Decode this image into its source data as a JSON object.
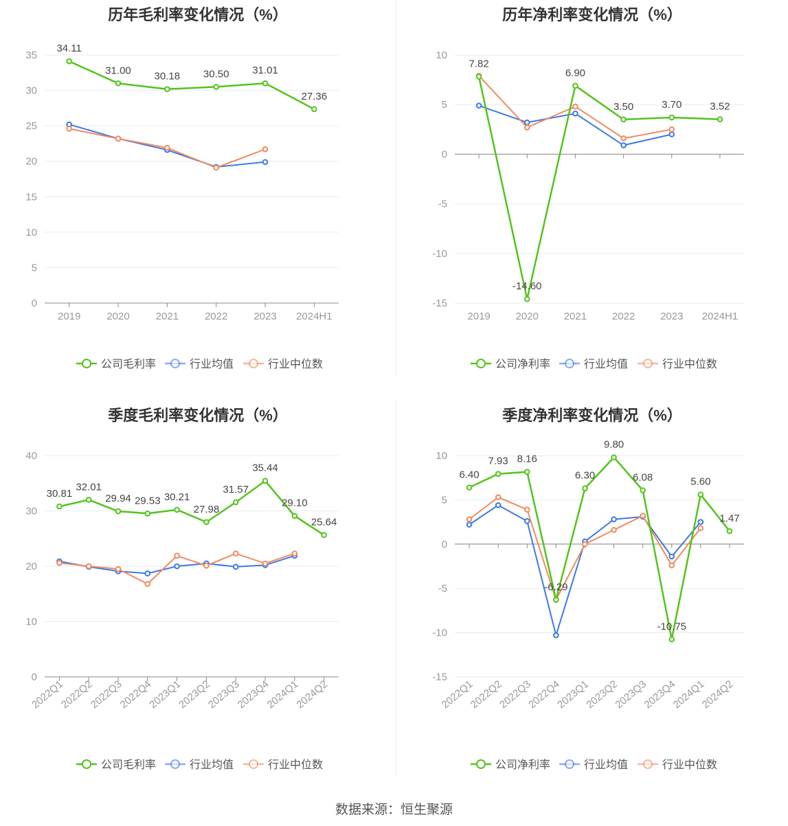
{
  "footer": "数据来源：恒生聚源",
  "colors": {
    "company": "#52c41a",
    "avg": "#3b78e7",
    "median": "#f08a5d",
    "grid": "#e8ebf3",
    "axis": "#999999",
    "label": "#444444"
  },
  "legend_labels": {
    "avg": "行业均值",
    "median": "行业中位数"
  },
  "chart_data": [
    {
      "type": "line",
      "title": "历年毛利率变化情况（%）",
      "x": [
        "2019",
        "2020",
        "2021",
        "2022",
        "2023",
        "2024H1"
      ],
      "ylim": [
        0,
        35
      ],
      "yticks": [
        0,
        5,
        10,
        15,
        20,
        25,
        30,
        35
      ],
      "series": [
        {
          "name": "公司毛利率",
          "key": "company",
          "values": [
            34.11,
            31.0,
            30.18,
            30.5,
            31.01,
            27.36
          ],
          "labels": [
            "34.11",
            "31.00",
            "30.18",
            "30.50",
            "31.01",
            "27.36"
          ]
        },
        {
          "name": "行业均值",
          "key": "avg",
          "values": [
            25.2,
            23.2,
            21.6,
            19.2,
            19.9,
            null
          ]
        },
        {
          "name": "行业中位数",
          "key": "median",
          "values": [
            24.6,
            23.2,
            21.9,
            19.1,
            21.7,
            null
          ]
        }
      ],
      "legend": "bottom",
      "grid": true
    },
    {
      "type": "line",
      "title": "历年净利率变化情况（%）",
      "x": [
        "2019",
        "2020",
        "2021",
        "2022",
        "2023",
        "2024H1"
      ],
      "ylim": [
        -15,
        10
      ],
      "yticks": [
        -15,
        -10,
        -5,
        0,
        5,
        10
      ],
      "series": [
        {
          "name": "公司净利率",
          "key": "company",
          "values": [
            7.82,
            -14.6,
            6.9,
            3.5,
            3.7,
            3.52
          ],
          "labels": [
            "7.82",
            "-14.60",
            "6.90",
            "3.50",
            "3.70",
            "3.52"
          ]
        },
        {
          "name": "行业均值",
          "key": "avg",
          "values": [
            4.9,
            3.2,
            4.1,
            0.9,
            2.0,
            null
          ]
        },
        {
          "name": "行业中位数",
          "key": "median",
          "values": [
            7.9,
            2.7,
            4.8,
            1.6,
            2.5,
            null
          ]
        }
      ],
      "legend": "bottom",
      "grid": true
    },
    {
      "type": "line",
      "title": "季度毛利率变化情况（%）",
      "x": [
        "2022Q1",
        "2022Q2",
        "2022Q3",
        "2022Q4",
        "2023Q1",
        "2023Q2",
        "2023Q3",
        "2023Q4",
        "2024Q1",
        "2024Q2"
      ],
      "ylim": [
        0,
        40
      ],
      "yticks": [
        0,
        10,
        20,
        30,
        40
      ],
      "series": [
        {
          "name": "公司毛利率",
          "key": "company",
          "values": [
            30.81,
            32.01,
            29.94,
            29.53,
            30.21,
            27.98,
            31.57,
            35.44,
            29.1,
            25.64
          ],
          "labels": [
            "30.81",
            "32.01",
            "29.94",
            "29.53",
            "30.21",
            "27.98",
            "31.57",
            "35.44",
            "29.10",
            "25.64"
          ]
        },
        {
          "name": "行业均值",
          "key": "avg",
          "values": [
            20.9,
            19.9,
            19.1,
            18.7,
            20.0,
            20.5,
            19.9,
            20.2,
            21.9,
            null
          ]
        },
        {
          "name": "行业中位数",
          "key": "median",
          "values": [
            20.6,
            20.0,
            19.5,
            16.8,
            21.9,
            20.1,
            22.3,
            20.5,
            22.3,
            null
          ]
        }
      ],
      "legend": "bottom",
      "grid": true
    },
    {
      "type": "line",
      "title": "季度净利率变化情况（%）",
      "x": [
        "2022Q1",
        "2022Q2",
        "2022Q3",
        "2022Q4",
        "2023Q1",
        "2023Q2",
        "2023Q3",
        "2023Q4",
        "2024Q1",
        "2024Q2"
      ],
      "ylim": [
        -15,
        10
      ],
      "yticks": [
        -15,
        -10,
        -5,
        0,
        5,
        10
      ],
      "series": [
        {
          "name": "公司净利率",
          "key": "company",
          "values": [
            6.4,
            7.93,
            8.16,
            -6.29,
            6.3,
            9.8,
            6.08,
            -10.75,
            5.6,
            1.47
          ],
          "labels": [
            "6.40",
            "7.93",
            "8.16",
            "-6.29",
            "6.30",
            "9.80",
            "6.08",
            "-10.75",
            "5.60",
            "1.47"
          ]
        },
        {
          "name": "行业均值",
          "key": "avg",
          "values": [
            2.2,
            4.4,
            2.6,
            -10.3,
            0.3,
            2.8,
            3.1,
            -1.4,
            2.5,
            null
          ]
        },
        {
          "name": "行业中位数",
          "key": "median",
          "values": [
            2.8,
            5.3,
            3.9,
            -6.3,
            0.0,
            1.6,
            3.2,
            -2.4,
            1.8,
            null
          ]
        }
      ],
      "legend": "bottom",
      "grid": true
    }
  ]
}
